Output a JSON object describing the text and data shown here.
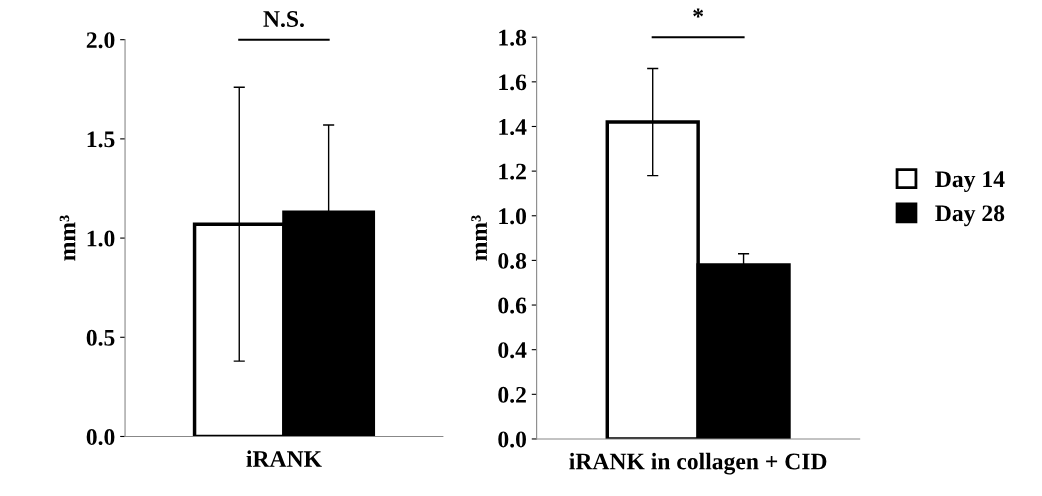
{
  "chart_data": [
    {
      "type": "bar",
      "categories": [
        "iRANK"
      ],
      "ylabel": "mm³",
      "series": [
        {
          "color": "#ffffff",
          "values": [
            1.07
          ],
          "errors": [
            0.69
          ]
        },
        {
          "color": "#000000",
          "values": [
            1.13
          ],
          "errors": [
            0.44
          ]
        }
      ],
      "ylim": [
        0,
        2.0
      ],
      "yticks": [
        {
          "value": 0,
          "label": "0.0"
        },
        {
          "value": 0.5,
          "label": "0.5"
        },
        {
          "value": 1.0,
          "label": "1.0"
        },
        {
          "value": 1.5,
          "label": "1.5"
        },
        {
          "value": 2.0,
          "label": "2.0"
        }
      ],
      "annotations": [
        "N.S."
      ],
      "grid": false,
      "legend": false
    },
    {
      "type": "bar",
      "categories": [
        "iRANK in collagen + CID"
      ],
      "ylabel": "mm³",
      "series": [
        {
          "name": "Day 14",
          "color": "#ffffff",
          "values": [
            1.42
          ],
          "errors": [
            0.24
          ]
        },
        {
          "name": "Day 28",
          "color": "#000000",
          "values": [
            0.78
          ],
          "errors": [
            0.05
          ]
        }
      ],
      "ylim": [
        0,
        1.8
      ],
      "yticks": [
        {
          "value": 0,
          "label": "0.0"
        },
        {
          "value": 0.2,
          "label": "0.2"
        },
        {
          "value": 0.4,
          "label": "0.4"
        },
        {
          "value": 0.6,
          "label": "0.6"
        },
        {
          "value": 0.8,
          "label": "0.8"
        },
        {
          "value": 1.0,
          "label": "1.0"
        },
        {
          "value": 1.2,
          "label": "1.2"
        },
        {
          "value": 1.4,
          "label": "1.4"
        },
        {
          "value": 1.6,
          "label": "1.6"
        },
        {
          "value": 1.8,
          "label": "1.8"
        }
      ],
      "annotations": [
        "*"
      ],
      "grid": false,
      "legend": "right"
    }
  ]
}
